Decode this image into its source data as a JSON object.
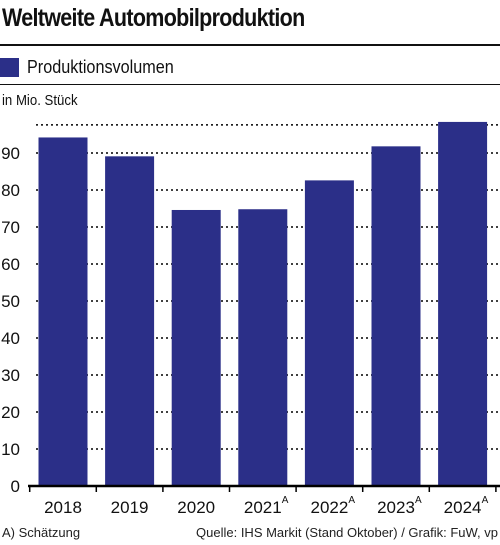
{
  "chart_data": {
    "type": "bar",
    "title": "Weltweite Automobilproduktion",
    "ylabel": "in Mio. Stück",
    "categories": [
      "2018",
      "2019",
      "2020",
      "2021",
      "2022",
      "2023",
      "2024"
    ],
    "category_markers": [
      "",
      "",
      "",
      "A",
      "A",
      "A",
      "A"
    ],
    "series": [
      {
        "name": "Produktionsvolumen",
        "values": [
          94.2,
          89.1,
          74.6,
          74.8,
          82.6,
          91.8,
          98.4
        ]
      }
    ],
    "yticks": [
      0,
      10,
      20,
      30,
      40,
      50,
      60,
      70,
      80,
      90
    ],
    "ylim": [
      0,
      100
    ],
    "grid": true,
    "legend": "top-left",
    "bar_color": "#2b2f88"
  },
  "footnote": "A) Schätzung",
  "source": "Quelle: IHS Markit (Stand Oktober) / Grafik: FuW, vp"
}
